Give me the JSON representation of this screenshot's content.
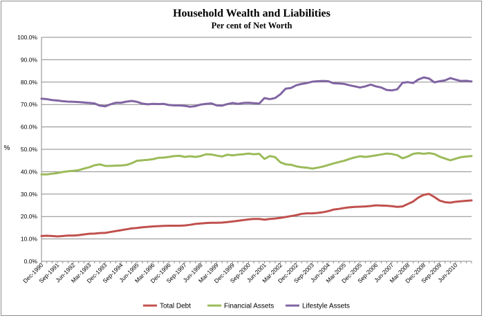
{
  "chart_data": {
    "type": "line",
    "title": "Household Wealth and Liabilities",
    "subtitle": "Per cent of Net Worth",
    "xlabel": "",
    "ylabel": "%",
    "ylim": [
      0,
      100
    ],
    "y_ticks": [
      "0.0%",
      "10.0%",
      "20.0%",
      "30.0%",
      "40.0%",
      "50.0%",
      "60.0%",
      "70.0%",
      "80.0%",
      "90.0%",
      "100.0%"
    ],
    "x_tick_labels": [
      "Dec-1990",
      "Sep-1991",
      "Jun-1992",
      "Mar-1993",
      "Dec-1993",
      "Sep-1994",
      "Jun-1995",
      "Mar-1996",
      "Dec-1996",
      "Sep-1997",
      "Jun-1998",
      "Mar-1999",
      "Dec-1999",
      "Sep-2000",
      "Jun-2001",
      "Mar-2002",
      "Dec-2002",
      "Sep-2003",
      "Jun-2004",
      "Mar-2005",
      "Dec-2005",
      "Sep-2006",
      "Jun-2007",
      "Mar-2008",
      "Dec-2008",
      "Sep-2009",
      "Jun-2010"
    ],
    "x_start": "Dec-1990",
    "x_end": "Mar-2011",
    "x_interval": "quarterly",
    "grid": true,
    "legend_position": "bottom",
    "series": [
      {
        "name": "Total Debt",
        "color": "#c0504d",
        "values": [
          11.3,
          11.4,
          11.3,
          11.1,
          11.3,
          11.5,
          11.5,
          11.7,
          12.0,
          12.3,
          12.4,
          12.6,
          12.7,
          13.1,
          13.5,
          13.9,
          14.3,
          14.7,
          14.9,
          15.2,
          15.4,
          15.6,
          15.7,
          15.8,
          15.9,
          15.9,
          15.9,
          16.0,
          16.3,
          16.7,
          16.9,
          17.1,
          17.2,
          17.2,
          17.3,
          17.5,
          17.8,
          18.1,
          18.4,
          18.7,
          18.9,
          18.9,
          18.6,
          18.9,
          19.1,
          19.4,
          19.8,
          20.2,
          20.6,
          21.2,
          21.4,
          21.4,
          21.6,
          21.9,
          22.4,
          23.1,
          23.4,
          23.8,
          24.1,
          24.3,
          24.4,
          24.5,
          24.7,
          25.0,
          24.9,
          24.8,
          24.6,
          24.3,
          24.5,
          25.6,
          26.7,
          28.5,
          29.7,
          30.1,
          28.7,
          27.1,
          26.4,
          26.2,
          26.6,
          26.8,
          27.0,
          27.2
        ]
      },
      {
        "name": "Financial Assets",
        "color": "#9bbb59",
        "values": [
          38.8,
          38.8,
          39.1,
          39.4,
          39.9,
          40.2,
          40.4,
          40.7,
          41.4,
          42.0,
          42.9,
          43.3,
          42.6,
          42.6,
          42.7,
          42.8,
          43.0,
          43.8,
          44.9,
          45.1,
          45.3,
          45.6,
          46.2,
          46.3,
          46.6,
          47.0,
          47.1,
          46.6,
          46.9,
          46.6,
          47.0,
          47.8,
          47.7,
          47.2,
          46.8,
          47.6,
          47.3,
          47.6,
          47.8,
          48.1,
          47.8,
          48.0,
          45.7,
          47.0,
          46.5,
          44.2,
          43.3,
          43.1,
          42.4,
          42.0,
          41.8,
          41.4,
          41.8,
          42.3,
          43.0,
          43.7,
          44.3,
          44.9,
          45.7,
          46.4,
          46.9,
          46.6,
          46.9,
          47.3,
          47.7,
          48.1,
          47.9,
          47.4,
          46.0,
          46.8,
          48.0,
          48.3,
          48.0,
          48.3,
          47.9,
          46.7,
          45.9,
          45.1,
          45.8,
          46.5,
          46.8,
          47.0
        ]
      },
      {
        "name": "Lifestyle Assets",
        "color": "#8064a2",
        "values": [
          72.6,
          72.4,
          72.0,
          71.8,
          71.5,
          71.3,
          71.2,
          71.1,
          70.9,
          70.7,
          70.5,
          69.5,
          69.2,
          70.1,
          70.8,
          70.8,
          71.3,
          71.6,
          71.2,
          70.4,
          70.1,
          70.3,
          70.2,
          70.3,
          69.8,
          69.6,
          69.6,
          69.4,
          69.0,
          69.3,
          70.0,
          70.3,
          70.5,
          69.6,
          69.5,
          70.2,
          70.7,
          70.3,
          70.7,
          70.8,
          70.6,
          70.4,
          72.9,
          72.4,
          72.9,
          74.6,
          77.1,
          77.4,
          78.6,
          79.2,
          79.6,
          80.2,
          80.4,
          80.5,
          80.4,
          79.5,
          79.4,
          79.2,
          78.6,
          78.1,
          77.6,
          78.1,
          78.9,
          78.1,
          77.6,
          76.5,
          76.3,
          76.8,
          79.7,
          80.0,
          79.6,
          81.2,
          82.1,
          81.6,
          79.9,
          80.4,
          80.8,
          81.8,
          81.1,
          80.5,
          80.6,
          80.3
        ]
      }
    ]
  }
}
